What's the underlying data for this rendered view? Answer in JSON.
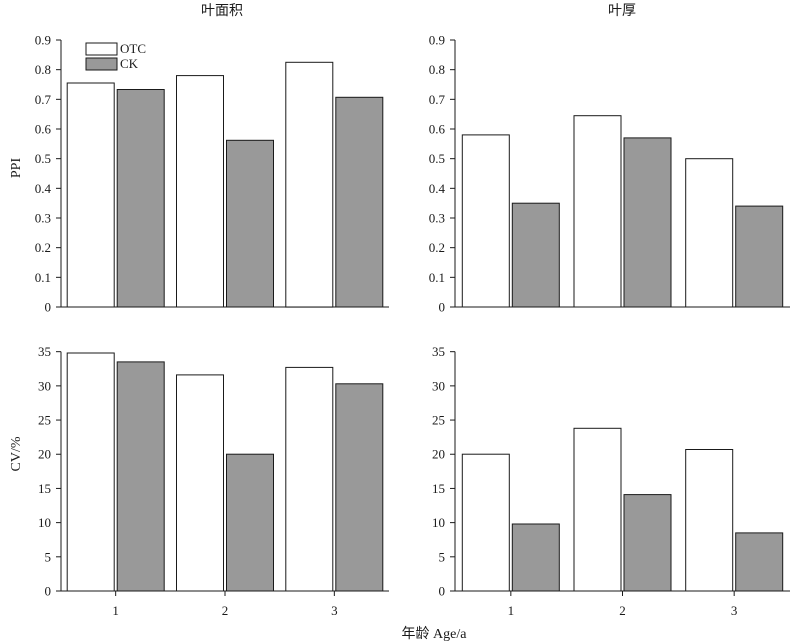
{
  "legend": [
    {
      "name": "OTC",
      "color": "#ffffff"
    },
    {
      "name": "CK",
      "color": "#999999"
    }
  ],
  "ylabel_top": "PPI",
  "ylabel_bottom": "CV/%",
  "xlabel": "年龄 Age/a",
  "colors": {
    "bar_stroke": "#1a1a1a",
    "otc_fill": "#ffffff",
    "ck_fill": "#999999",
    "axis": "#1a1a1a"
  },
  "chart_data": [
    {
      "type": "bar",
      "title": "叶面积",
      "ylabel": "PPI",
      "categories": [
        "1",
        "2",
        "3"
      ],
      "series": [
        {
          "name": "OTC",
          "values": [
            0.755,
            0.78,
            0.825
          ]
        },
        {
          "name": "CK",
          "values": [
            0.733,
            0.562,
            0.707
          ]
        }
      ],
      "ylim": [
        0,
        0.9
      ],
      "yticks": [
        0,
        0.1,
        0.2,
        0.3,
        0.4,
        0.5,
        0.6,
        0.7,
        0.8,
        0.9
      ],
      "grid": false,
      "legend_position": "top-left"
    },
    {
      "type": "bar",
      "title": "叶厚",
      "ylabel": "",
      "categories": [
        "1",
        "2",
        "3"
      ],
      "series": [
        {
          "name": "OTC",
          "values": [
            0.58,
            0.645,
            0.5
          ]
        },
        {
          "name": "CK",
          "values": [
            0.35,
            0.57,
            0.34
          ]
        }
      ],
      "ylim": [
        0,
        0.9
      ],
      "yticks": [
        0,
        0.1,
        0.2,
        0.3,
        0.4,
        0.5,
        0.6,
        0.7,
        0.8,
        0.9
      ],
      "grid": false
    },
    {
      "type": "bar",
      "title": "",
      "ylabel": "CV/%",
      "categories": [
        "1",
        "2",
        "3"
      ],
      "series": [
        {
          "name": "OTC",
          "values": [
            34.8,
            31.6,
            32.7
          ]
        },
        {
          "name": "CK",
          "values": [
            33.5,
            20.0,
            30.3
          ]
        }
      ],
      "ylim": [
        0,
        37
      ],
      "yticks": [
        0,
        5,
        10,
        15,
        20,
        25,
        30,
        35
      ],
      "grid": false
    },
    {
      "type": "bar",
      "title": "",
      "ylabel": "",
      "categories": [
        "1",
        "2",
        "3"
      ],
      "series": [
        {
          "name": "OTC",
          "values": [
            20.0,
            23.8,
            20.7
          ]
        },
        {
          "name": "CK",
          "values": [
            9.8,
            14.1,
            8.5
          ]
        }
      ],
      "ylim": [
        0,
        37
      ],
      "yticks": [
        0,
        5,
        10,
        15,
        20,
        25,
        30,
        35
      ],
      "grid": false
    }
  ]
}
